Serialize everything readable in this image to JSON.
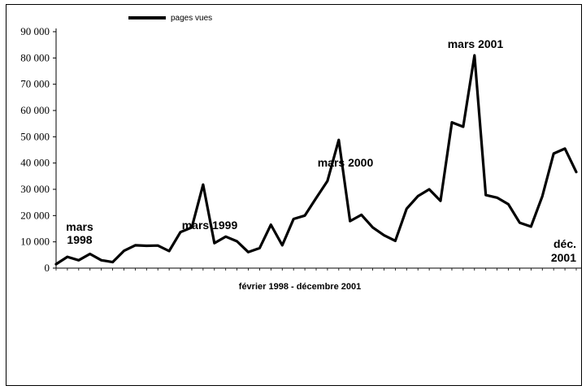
{
  "chart_data": {
    "type": "line",
    "title": "",
    "xlabel": "février 1998 - décembre 2001",
    "ylabel": "",
    "ylim": [
      0,
      90000
    ],
    "yticks": [
      0,
      10000,
      20000,
      30000,
      40000,
      50000,
      60000,
      70000,
      80000,
      90000
    ],
    "ytick_labels": [
      "0",
      "10 000",
      "20 000",
      "30 000",
      "40 000",
      "50 000",
      "60 000",
      "70 000",
      "80 000",
      "90 000"
    ],
    "grid": false,
    "legend_position": "top-left",
    "series": [
      {
        "name": "pages vues",
        "color": "#000000",
        "values": [
          1500,
          4300,
          3000,
          5400,
          3000,
          2300,
          6600,
          8700,
          8500,
          8600,
          6500,
          13700,
          15500,
          31800,
          9500,
          12000,
          10200,
          6100,
          7600,
          16500,
          8700,
          18700,
          20000,
          26700,
          33200,
          48800,
          17900,
          20300,
          15500,
          12500,
          10400,
          22600,
          27400,
          30000,
          25600,
          55500,
          53800,
          81000,
          27800,
          26800,
          24300,
          17300,
          15800,
          27400,
          43600,
          45500,
          36600
        ]
      }
    ],
    "annotations": [
      {
        "line1": "mars",
        "line2": "1998",
        "index": 1
      },
      {
        "line1": "mars 1999",
        "index": 13
      },
      {
        "line1": "mars 2000",
        "index": 25
      },
      {
        "line1": "mars 2001",
        "index": 37
      },
      {
        "line1": "déc.",
        "line2": "2001",
        "index": 46
      }
    ]
  }
}
